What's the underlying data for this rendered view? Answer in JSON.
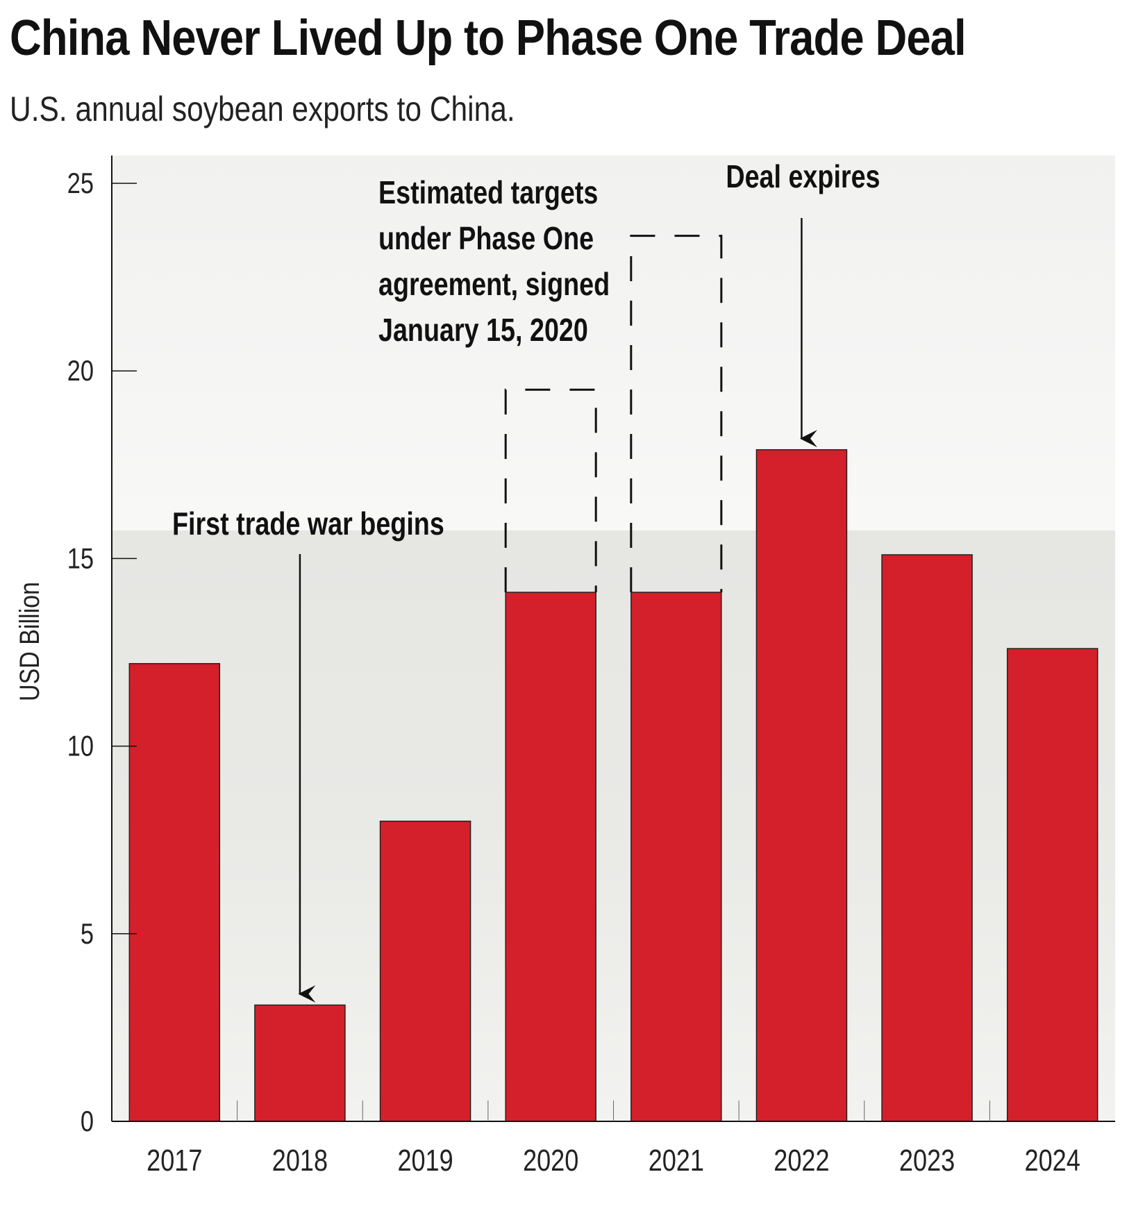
{
  "title": "China Never Lived Up to Phase One Trade Deal",
  "subtitle": "U.S. annual soybean exports to China.",
  "colors": {
    "bar": "#d4202a",
    "bar_edge": "#222222",
    "axis": "#111111",
    "background_field": "#ececec"
  },
  "chart_data": {
    "type": "bar",
    "ylabel": "USD Billion",
    "xlabel": "",
    "ylim": [
      0,
      25
    ],
    "yticks": [
      "0",
      "5",
      "10",
      "15",
      "20",
      "25"
    ],
    "categories": [
      "2017",
      "2018",
      "2019",
      "2020",
      "2021",
      "2022",
      "2023",
      "2024"
    ],
    "series": [
      {
        "values": [
          12.2,
          3.1,
          8.0,
          14.1,
          14.1,
          17.9,
          15.1,
          12.6
        ]
      }
    ],
    "targets": [
      {
        "category": "2020",
        "value": 19.5
      },
      {
        "category": "2021",
        "value": 23.6
      }
    ],
    "annotations": [
      {
        "id": "trade-war",
        "lines": [
          "First trade war begins"
        ],
        "category": "2018"
      },
      {
        "id": "targets",
        "lines": [
          "Estimated targets",
          "under Phase One",
          "agreement, signed",
          "January 15, 2020"
        ]
      },
      {
        "id": "deal-expires",
        "lines": [
          "Deal expires"
        ],
        "category": "2022"
      }
    ],
    "grid": false,
    "legend": "none"
  }
}
